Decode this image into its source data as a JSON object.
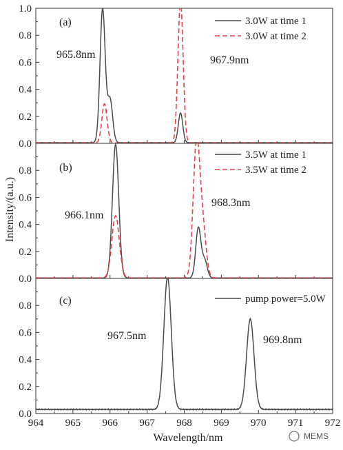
{
  "figure": {
    "ylabel": "Intensity/(a.u.)",
    "xlabel": "Wavelength/nm",
    "watermark": "MEMS",
    "colors": {
      "solid": "#4a4a4a",
      "dashed": "#e8404a"
    }
  },
  "chart_data": [
    {
      "type": "line",
      "panel": "(a)",
      "xlim": [
        964,
        972
      ],
      "ylim": [
        0,
        1.0
      ],
      "x_ticks": [
        "964",
        "965",
        "966",
        "967",
        "968",
        "969",
        "970",
        "971",
        "972"
      ],
      "y_ticks": [
        "0.0",
        "0.2",
        "0.4",
        "0.6",
        "0.8",
        "1.0"
      ],
      "legend_position": "top-right",
      "annotations": [
        "965.8nm",
        "967.9nm"
      ],
      "series": [
        {
          "name": "3.0W at time 1",
          "style": "solid",
          "baseline": 0.005,
          "peaks": [
            {
              "x": 965.8,
              "y": 0.99,
              "w": 0.07
            },
            {
              "x": 966.0,
              "y": 0.32,
              "w": 0.07
            },
            {
              "x": 967.9,
              "y": 0.22,
              "w": 0.06
            }
          ]
        },
        {
          "name": "3.0W at time 2",
          "style": "dashed",
          "baseline": 0.003,
          "peaks": [
            {
              "x": 965.85,
              "y": 0.29,
              "w": 0.07
            },
            {
              "x": 967.9,
              "y": 1.05,
              "w": 0.07
            }
          ]
        }
      ]
    },
    {
      "type": "line",
      "panel": "(b)",
      "xlim": [
        964,
        972
      ],
      "ylim": [
        0,
        1.0
      ],
      "x_ticks": [
        "964",
        "965",
        "966",
        "967",
        "968",
        "969",
        "970",
        "971",
        "972"
      ],
      "y_ticks": [
        "0.0",
        "0.2",
        "0.4",
        "0.6",
        "0.8"
      ],
      "legend_position": "top-right",
      "annotations": [
        "966.1nm",
        "968.3nm"
      ],
      "series": [
        {
          "name": "3.5W at time 1",
          "style": "solid",
          "baseline": 0.003,
          "peaks": [
            {
              "x": 966.15,
              "y": 0.99,
              "w": 0.085
            },
            {
              "x": 968.38,
              "y": 0.37,
              "w": 0.07
            },
            {
              "x": 968.55,
              "y": 0.13,
              "w": 0.07
            }
          ]
        },
        {
          "name": "3.5W at time 2",
          "style": "dashed",
          "baseline": 0.004,
          "peaks": [
            {
              "x": 966.15,
              "y": 0.46,
              "w": 0.1
            },
            {
              "x": 968.33,
              "y": 0.98,
              "w": 0.09
            },
            {
              "x": 968.5,
              "y": 0.35,
              "w": 0.09
            }
          ]
        }
      ]
    },
    {
      "type": "line",
      "panel": "(c)",
      "xlim": [
        964,
        972
      ],
      "ylim": [
        0,
        1.0
      ],
      "x_ticks": [
        "964",
        "965",
        "966",
        "967",
        "968",
        "969",
        "970",
        "971",
        "972"
      ],
      "y_ticks": [
        "0.0",
        "0.2",
        "0.4",
        "0.6",
        "0.8"
      ],
      "legend_position": "top-right",
      "annotations": [
        "967.5nm",
        "969.8nm"
      ],
      "series": [
        {
          "name": "pump power=5.0W",
          "style": "solid",
          "baseline": 0.03,
          "peaks": [
            {
              "x": 967.55,
              "y": 0.98,
              "w": 0.1
            },
            {
              "x": 969.78,
              "y": 0.67,
              "w": 0.1
            }
          ]
        }
      ]
    }
  ]
}
